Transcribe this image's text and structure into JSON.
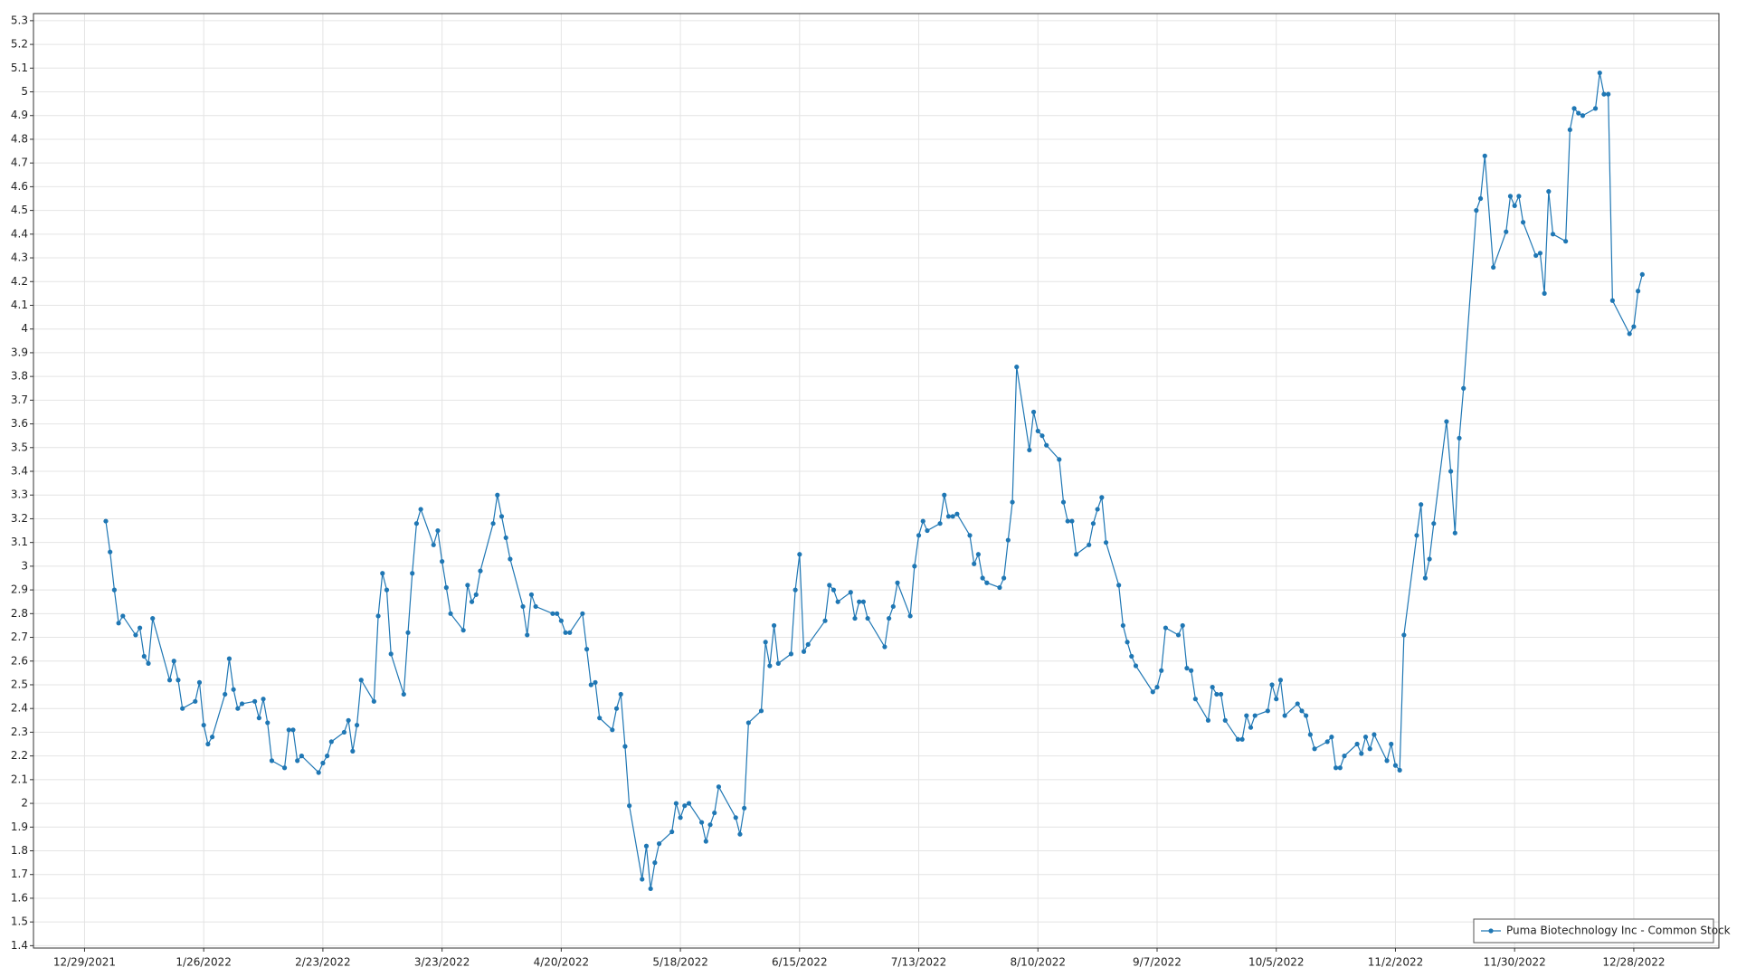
{
  "chart_data": {
    "type": "line",
    "grid": true,
    "legend": "lower right",
    "xlim": [
      "12/17/2021",
      "1/17/2023"
    ],
    "xticks": [
      "12/29/2021",
      "1/26/2022",
      "2/23/2022",
      "3/23/2022",
      "4/20/2022",
      "5/18/2022",
      "6/15/2022",
      "7/13/2022",
      "8/10/2022",
      "9/7/2022",
      "10/5/2022",
      "11/2/2022",
      "11/30/2022",
      "12/28/2022"
    ],
    "ylim": [
      1.39,
      5.33
    ],
    "yticks": [
      1.4,
      1.5,
      1.6,
      1.7,
      1.8,
      1.9,
      2,
      2.1,
      2.2,
      2.3,
      2.4,
      2.5,
      2.6,
      2.7,
      2.8,
      2.9,
      3,
      3.1,
      3.2,
      3.3,
      3.4,
      3.5,
      3.6,
      3.7,
      3.8,
      3.9,
      4,
      4.1,
      4.2,
      4.3,
      4.4,
      4.5,
      4.6,
      4.7,
      4.8,
      4.9,
      5,
      5.1,
      5.2,
      5.3
    ],
    "x": [
      "1/3/2022",
      "1/4/2022",
      "1/5/2022",
      "1/6/2022",
      "1/7/2022",
      "1/10/2022",
      "1/11/2022",
      "1/12/2022",
      "1/13/2022",
      "1/14/2022",
      "1/18/2022",
      "1/19/2022",
      "1/20/2022",
      "1/21/2022",
      "1/24/2022",
      "1/25/2022",
      "1/26/2022",
      "1/27/2022",
      "1/28/2022",
      "1/31/2022",
      "2/1/2022",
      "2/2/2022",
      "2/3/2022",
      "2/4/2022",
      "2/7/2022",
      "2/8/2022",
      "2/9/2022",
      "2/10/2022",
      "2/11/2022",
      "2/14/2022",
      "2/15/2022",
      "2/16/2022",
      "2/17/2022",
      "2/18/2022",
      "2/22/2022",
      "2/23/2022",
      "2/24/2022",
      "2/25/2022",
      "2/28/2022",
      "3/1/2022",
      "3/2/2022",
      "3/3/2022",
      "3/4/2022",
      "3/7/2022",
      "3/8/2022",
      "3/9/2022",
      "3/10/2022",
      "3/11/2022",
      "3/14/2022",
      "3/15/2022",
      "3/16/2022",
      "3/17/2022",
      "3/18/2022",
      "3/21/2022",
      "3/22/2022",
      "3/23/2022",
      "3/24/2022",
      "3/25/2022",
      "3/28/2022",
      "3/29/2022",
      "3/30/2022",
      "3/31/2022",
      "4/1/2022",
      "4/4/2022",
      "4/5/2022",
      "4/6/2022",
      "4/7/2022",
      "4/8/2022",
      "4/11/2022",
      "4/12/2022",
      "4/13/2022",
      "4/14/2022",
      "4/18/2022",
      "4/19/2022",
      "4/20/2022",
      "4/21/2022",
      "4/22/2022",
      "4/25/2022",
      "4/26/2022",
      "4/27/2022",
      "4/28/2022",
      "4/29/2022",
      "5/2/2022",
      "5/3/2022",
      "5/4/2022",
      "5/5/2022",
      "5/6/2022",
      "5/9/2022",
      "5/10/2022",
      "5/11/2022",
      "5/12/2022",
      "5/13/2022",
      "5/16/2022",
      "5/17/2022",
      "5/18/2022",
      "5/19/2022",
      "5/20/2022",
      "5/23/2022",
      "5/24/2022",
      "5/25/2022",
      "5/26/2022",
      "5/27/2022",
      "5/31/2022",
      "6/1/2022",
      "6/2/2022",
      "6/3/2022",
      "6/6/2022",
      "6/7/2022",
      "6/8/2022",
      "6/9/2022",
      "6/10/2022",
      "6/13/2022",
      "6/14/2022",
      "6/15/2022",
      "6/16/2022",
      "6/17/2022",
      "6/21/2022",
      "6/22/2022",
      "6/23/2022",
      "6/24/2022",
      "6/27/2022",
      "6/28/2022",
      "6/29/2022",
      "6/30/2022",
      "7/1/2022",
      "7/5/2022",
      "7/6/2022",
      "7/7/2022",
      "7/8/2022",
      "7/11/2022",
      "7/12/2022",
      "7/13/2022",
      "7/14/2022",
      "7/15/2022",
      "7/18/2022",
      "7/19/2022",
      "7/20/2022",
      "7/21/2022",
      "7/22/2022",
      "7/25/2022",
      "7/26/2022",
      "7/27/2022",
      "7/28/2022",
      "7/29/2022",
      "8/1/2022",
      "8/2/2022",
      "8/3/2022",
      "8/4/2022",
      "8/5/2022",
      "8/8/2022",
      "8/9/2022",
      "8/10/2022",
      "8/11/2022",
      "8/12/2022",
      "8/15/2022",
      "8/16/2022",
      "8/17/2022",
      "8/18/2022",
      "8/19/2022",
      "8/22/2022",
      "8/23/2022",
      "8/24/2022",
      "8/25/2022",
      "8/26/2022",
      "8/29/2022",
      "8/30/2022",
      "8/31/2022",
      "9/1/2022",
      "9/2/2022",
      "9/6/2022",
      "9/7/2022",
      "9/8/2022",
      "9/9/2022",
      "9/12/2022",
      "9/13/2022",
      "9/14/2022",
      "9/15/2022",
      "9/16/2022",
      "9/19/2022",
      "9/20/2022",
      "9/21/2022",
      "9/22/2022",
      "9/23/2022",
      "9/26/2022",
      "9/27/2022",
      "9/28/2022",
      "9/29/2022",
      "9/30/2022",
      "10/3/2022",
      "10/4/2022",
      "10/5/2022",
      "10/6/2022",
      "10/7/2022",
      "10/10/2022",
      "10/11/2022",
      "10/12/2022",
      "10/13/2022",
      "10/14/2022",
      "10/17/2022",
      "10/18/2022",
      "10/19/2022",
      "10/20/2022",
      "10/21/2022",
      "10/24/2022",
      "10/25/2022",
      "10/26/2022",
      "10/27/2022",
      "10/28/2022",
      "10/31/2022",
      "11/1/2022",
      "11/2/2022",
      "11/3/2022",
      "11/4/2022",
      "11/7/2022",
      "11/8/2022",
      "11/9/2022",
      "11/10/2022",
      "11/11/2022",
      "11/14/2022",
      "11/15/2022",
      "11/16/2022",
      "11/17/2022",
      "11/18/2022",
      "11/21/2022",
      "11/22/2022",
      "11/23/2022",
      "11/25/2022",
      "11/28/2022",
      "11/29/2022",
      "11/30/2022",
      "12/1/2022",
      "12/2/2022",
      "12/5/2022",
      "12/6/2022",
      "12/7/2022",
      "12/8/2022",
      "12/9/2022",
      "12/12/2022",
      "12/13/2022",
      "12/14/2022",
      "12/15/2022",
      "12/16/2022",
      "12/19/2022",
      "12/20/2022",
      "12/21/2022",
      "12/22/2022",
      "12/23/2022",
      "12/27/2022",
      "12/28/2022",
      "12/29/2022",
      "12/30/2022"
    ],
    "series": [
      {
        "name": "Puma Biotechnology Inc - Common Stock",
        "color": "#1f77b4",
        "values": [
          3.19,
          3.06,
          2.9,
          2.76,
          2.79,
          2.71,
          2.74,
          2.62,
          2.59,
          2.78,
          2.52,
          2.6,
          2.52,
          2.4,
          2.43,
          2.51,
          2.33,
          2.25,
          2.28,
          2.46,
          2.61,
          2.48,
          2.4,
          2.42,
          2.43,
          2.36,
          2.44,
          2.34,
          2.18,
          2.15,
          2.31,
          2.31,
          2.18,
          2.2,
          2.13,
          2.17,
          2.2,
          2.26,
          2.3,
          2.35,
          2.22,
          2.33,
          2.52,
          2.43,
          2.79,
          2.97,
          2.9,
          2.63,
          2.46,
          2.72,
          2.97,
          3.18,
          3.24,
          3.09,
          3.15,
          3.02,
          2.91,
          2.8,
          2.73,
          2.92,
          2.85,
          2.88,
          2.98,
          3.18,
          3.3,
          3.21,
          3.12,
          3.03,
          2.83,
          2.71,
          2.88,
          2.83,
          2.8,
          2.8,
          2.77,
          2.72,
          2.72,
          2.8,
          2.65,
          2.5,
          2.51,
          2.36,
          2.31,
          2.4,
          2.46,
          2.24,
          1.99,
          1.68,
          1.82,
          1.64,
          1.75,
          1.83,
          1.88,
          2.0,
          1.94,
          1.99,
          2.0,
          1.92,
          1.84,
          1.91,
          1.96,
          2.07,
          1.94,
          1.87,
          1.98,
          2.34,
          2.39,
          2.68,
          2.58,
          2.75,
          2.59,
          2.63,
          2.9,
          3.05,
          2.64,
          2.67,
          2.77,
          2.92,
          2.9,
          2.85,
          2.89,
          2.78,
          2.85,
          2.85,
          2.78,
          2.66,
          2.78,
          2.83,
          2.93,
          2.79,
          3.0,
          3.13,
          3.19,
          3.15,
          3.18,
          3.3,
          3.21,
          3.21,
          3.22,
          3.13,
          3.01,
          3.05,
          2.95,
          2.93,
          2.91,
          2.95,
          3.11,
          3.27,
          3.84,
          3.49,
          3.65,
          3.57,
          3.55,
          3.51,
          3.45,
          3.27,
          3.19,
          3.19,
          3.05,
          3.09,
          3.18,
          3.24,
          3.29,
          3.1,
          2.92,
          2.75,
          2.68,
          2.62,
          2.58,
          2.47,
          2.49,
          2.56,
          2.74,
          2.71,
          2.75,
          2.57,
          2.56,
          2.44,
          2.35,
          2.49,
          2.46,
          2.46,
          2.35,
          2.27,
          2.27,
          2.37,
          2.32,
          2.37,
          2.39,
          2.5,
          2.44,
          2.52,
          2.37,
          2.42,
          2.39,
          2.37,
          2.29,
          2.23,
          2.26,
          2.28,
          2.15,
          2.15,
          2.2,
          2.25,
          2.21,
          2.28,
          2.23,
          2.29,
          2.18,
          2.25,
          2.16,
          2.14,
          2.71,
          3.13,
          3.26,
          2.95,
          3.03,
          3.18,
          3.61,
          3.4,
          3.14,
          3.54,
          3.75,
          4.5,
          4.55,
          4.73,
          4.26,
          4.41,
          4.56,
          4.52,
          4.56,
          4.45,
          4.31,
          4.32,
          4.15,
          4.58,
          4.4,
          4.37,
          4.84,
          4.93,
          4.91,
          4.9,
          4.93,
          5.08,
          4.99,
          4.99,
          4.12,
          3.98,
          4.01,
          4.16,
          4.23
        ]
      }
    ]
  }
}
